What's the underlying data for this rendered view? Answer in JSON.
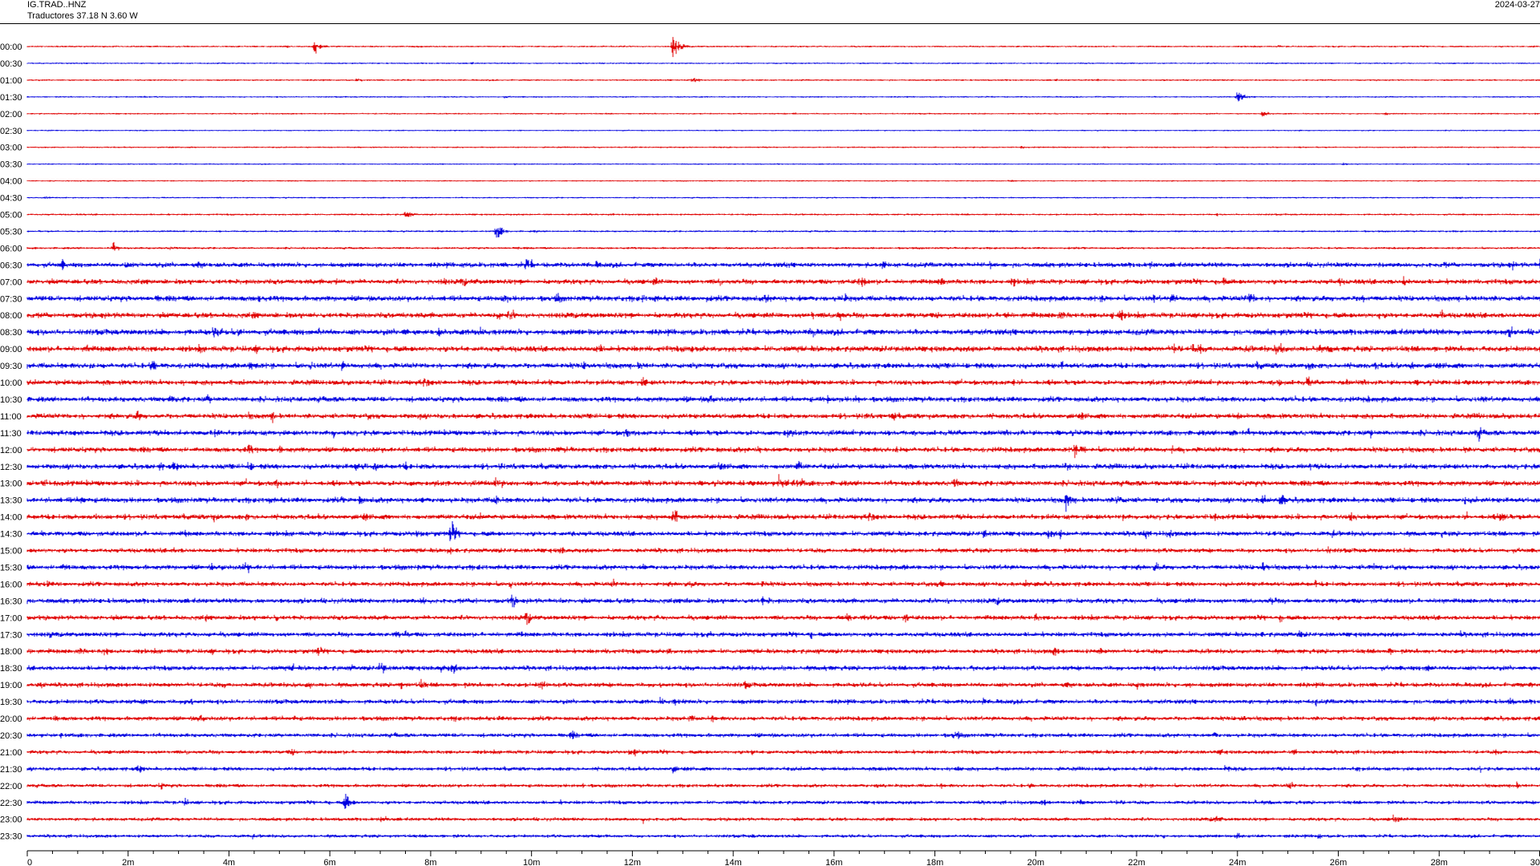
{
  "header": {
    "station_code": "IG.TRAD..HNZ",
    "station_info": "Traductores  37.18 N 3.60 W",
    "date": "2024-03-27"
  },
  "colors": {
    "even_rows": "#e00000",
    "odd_rows": "#0000e0",
    "axis": "#000000"
  },
  "chart_data": {
    "type": "line",
    "title": "",
    "xlabel": "",
    "ylabel": "",
    "x_unit": "minutes",
    "xlim": [
      0,
      30
    ],
    "x_ticks": [
      0,
      2,
      4,
      6,
      8,
      10,
      12,
      14,
      16,
      18,
      20,
      22,
      24,
      26,
      28,
      30
    ],
    "x_tick_labels": [
      "0",
      "2m",
      "4m",
      "6m",
      "8m",
      "10m",
      "12m",
      "14m",
      "16m",
      "18m",
      "20m",
      "22m",
      "24m",
      "26m",
      "28m",
      "30"
    ],
    "row_labels": [
      "00:00",
      "00:30",
      "01:00",
      "01:30",
      "02:00",
      "02:30",
      "03:00",
      "03:30",
      "04:00",
      "04:30",
      "05:00",
      "05:30",
      "06:00",
      "06:30",
      "07:00",
      "07:30",
      "08:00",
      "08:30",
      "09:00",
      "09:30",
      "10:00",
      "10:30",
      "11:00",
      "11:30",
      "12:00",
      "12:30",
      "13:00",
      "13:30",
      "14:00",
      "14:30",
      "15:00",
      "15:30",
      "16:00",
      "16:30",
      "17:00",
      "17:30",
      "18:00",
      "18:30",
      "19:00",
      "19:30",
      "20:00",
      "20:30",
      "21:00",
      "21:30",
      "22:00",
      "22:30",
      "23:00",
      "23:30"
    ],
    "row_noise_level": [
      0.7,
      0.6,
      0.7,
      0.6,
      0.6,
      0.5,
      0.6,
      0.5,
      0.5,
      0.6,
      0.8,
      0.8,
      1.0,
      2.5,
      2.6,
      2.8,
      2.8,
      3.0,
      3.0,
      2.8,
      2.6,
      2.7,
      2.6,
      2.7,
      2.6,
      2.7,
      2.7,
      2.7,
      2.6,
      2.5,
      2.3,
      2.5,
      2.3,
      2.5,
      2.4,
      2.4,
      2.3,
      2.4,
      2.3,
      2.3,
      2.2,
      2.0,
      1.9,
      1.9,
      1.7,
      1.8,
      1.7,
      1.6
    ],
    "events": [
      {
        "row": "00:00",
        "minute": 5.7,
        "amplitude": 8
      },
      {
        "row": "00:00",
        "minute": 12.8,
        "amplitude": 14
      },
      {
        "row": "01:00",
        "minute": 13.2,
        "amplitude": 5
      },
      {
        "row": "01:30",
        "minute": 24.0,
        "amplitude": 7
      },
      {
        "row": "02:00",
        "minute": 24.5,
        "amplitude": 4
      },
      {
        "row": "05:00",
        "minute": 7.5,
        "amplitude": 6
      },
      {
        "row": "05:30",
        "minute": 9.3,
        "amplitude": 10
      },
      {
        "row": "06:00",
        "minute": 1.7,
        "amplitude": 6
      },
      {
        "row": "06:30",
        "minute": 3.4,
        "amplitude": 8
      },
      {
        "row": "06:30",
        "minute": 30.0,
        "amplitude": 8
      },
      {
        "row": "07:00",
        "minute": 27.3,
        "amplitude": 8
      },
      {
        "row": "07:30",
        "minute": 10.5,
        "amplitude": 7
      },
      {
        "row": "08:00",
        "minute": 21.5,
        "amplitude": 7
      },
      {
        "row": "12:30",
        "minute": 20.6,
        "amplitude": 6
      },
      {
        "row": "13:00",
        "minute": 14.9,
        "amplitude": 10
      },
      {
        "row": "13:30",
        "minute": 20.6,
        "amplitude": 12
      },
      {
        "row": "13:30",
        "minute": 24.5,
        "amplitude": 10
      },
      {
        "row": "14:00",
        "minute": 12.8,
        "amplitude": 12
      },
      {
        "row": "14:30",
        "minute": 8.4,
        "amplitude": 14
      },
      {
        "row": "15:30",
        "minute": 24.5,
        "amplitude": 8
      },
      {
        "row": "16:30",
        "minute": 9.6,
        "amplitude": 9
      },
      {
        "row": "17:00",
        "minute": 9.9,
        "amplitude": 9
      },
      {
        "row": "17:00",
        "minute": 17.4,
        "amplitude": 7
      },
      {
        "row": "18:30",
        "minute": 7.0,
        "amplitude": 10
      },
      {
        "row": "19:00",
        "minute": 22.0,
        "amplitude": 6
      },
      {
        "row": "21:30",
        "minute": 2.2,
        "amplitude": 7
      },
      {
        "row": "22:30",
        "minute": 6.3,
        "amplitude": 12
      },
      {
        "row": "23:00",
        "minute": 27.1,
        "amplitude": 7
      },
      {
        "row": "23:30",
        "minute": 24.0,
        "amplitude": 5
      }
    ]
  }
}
